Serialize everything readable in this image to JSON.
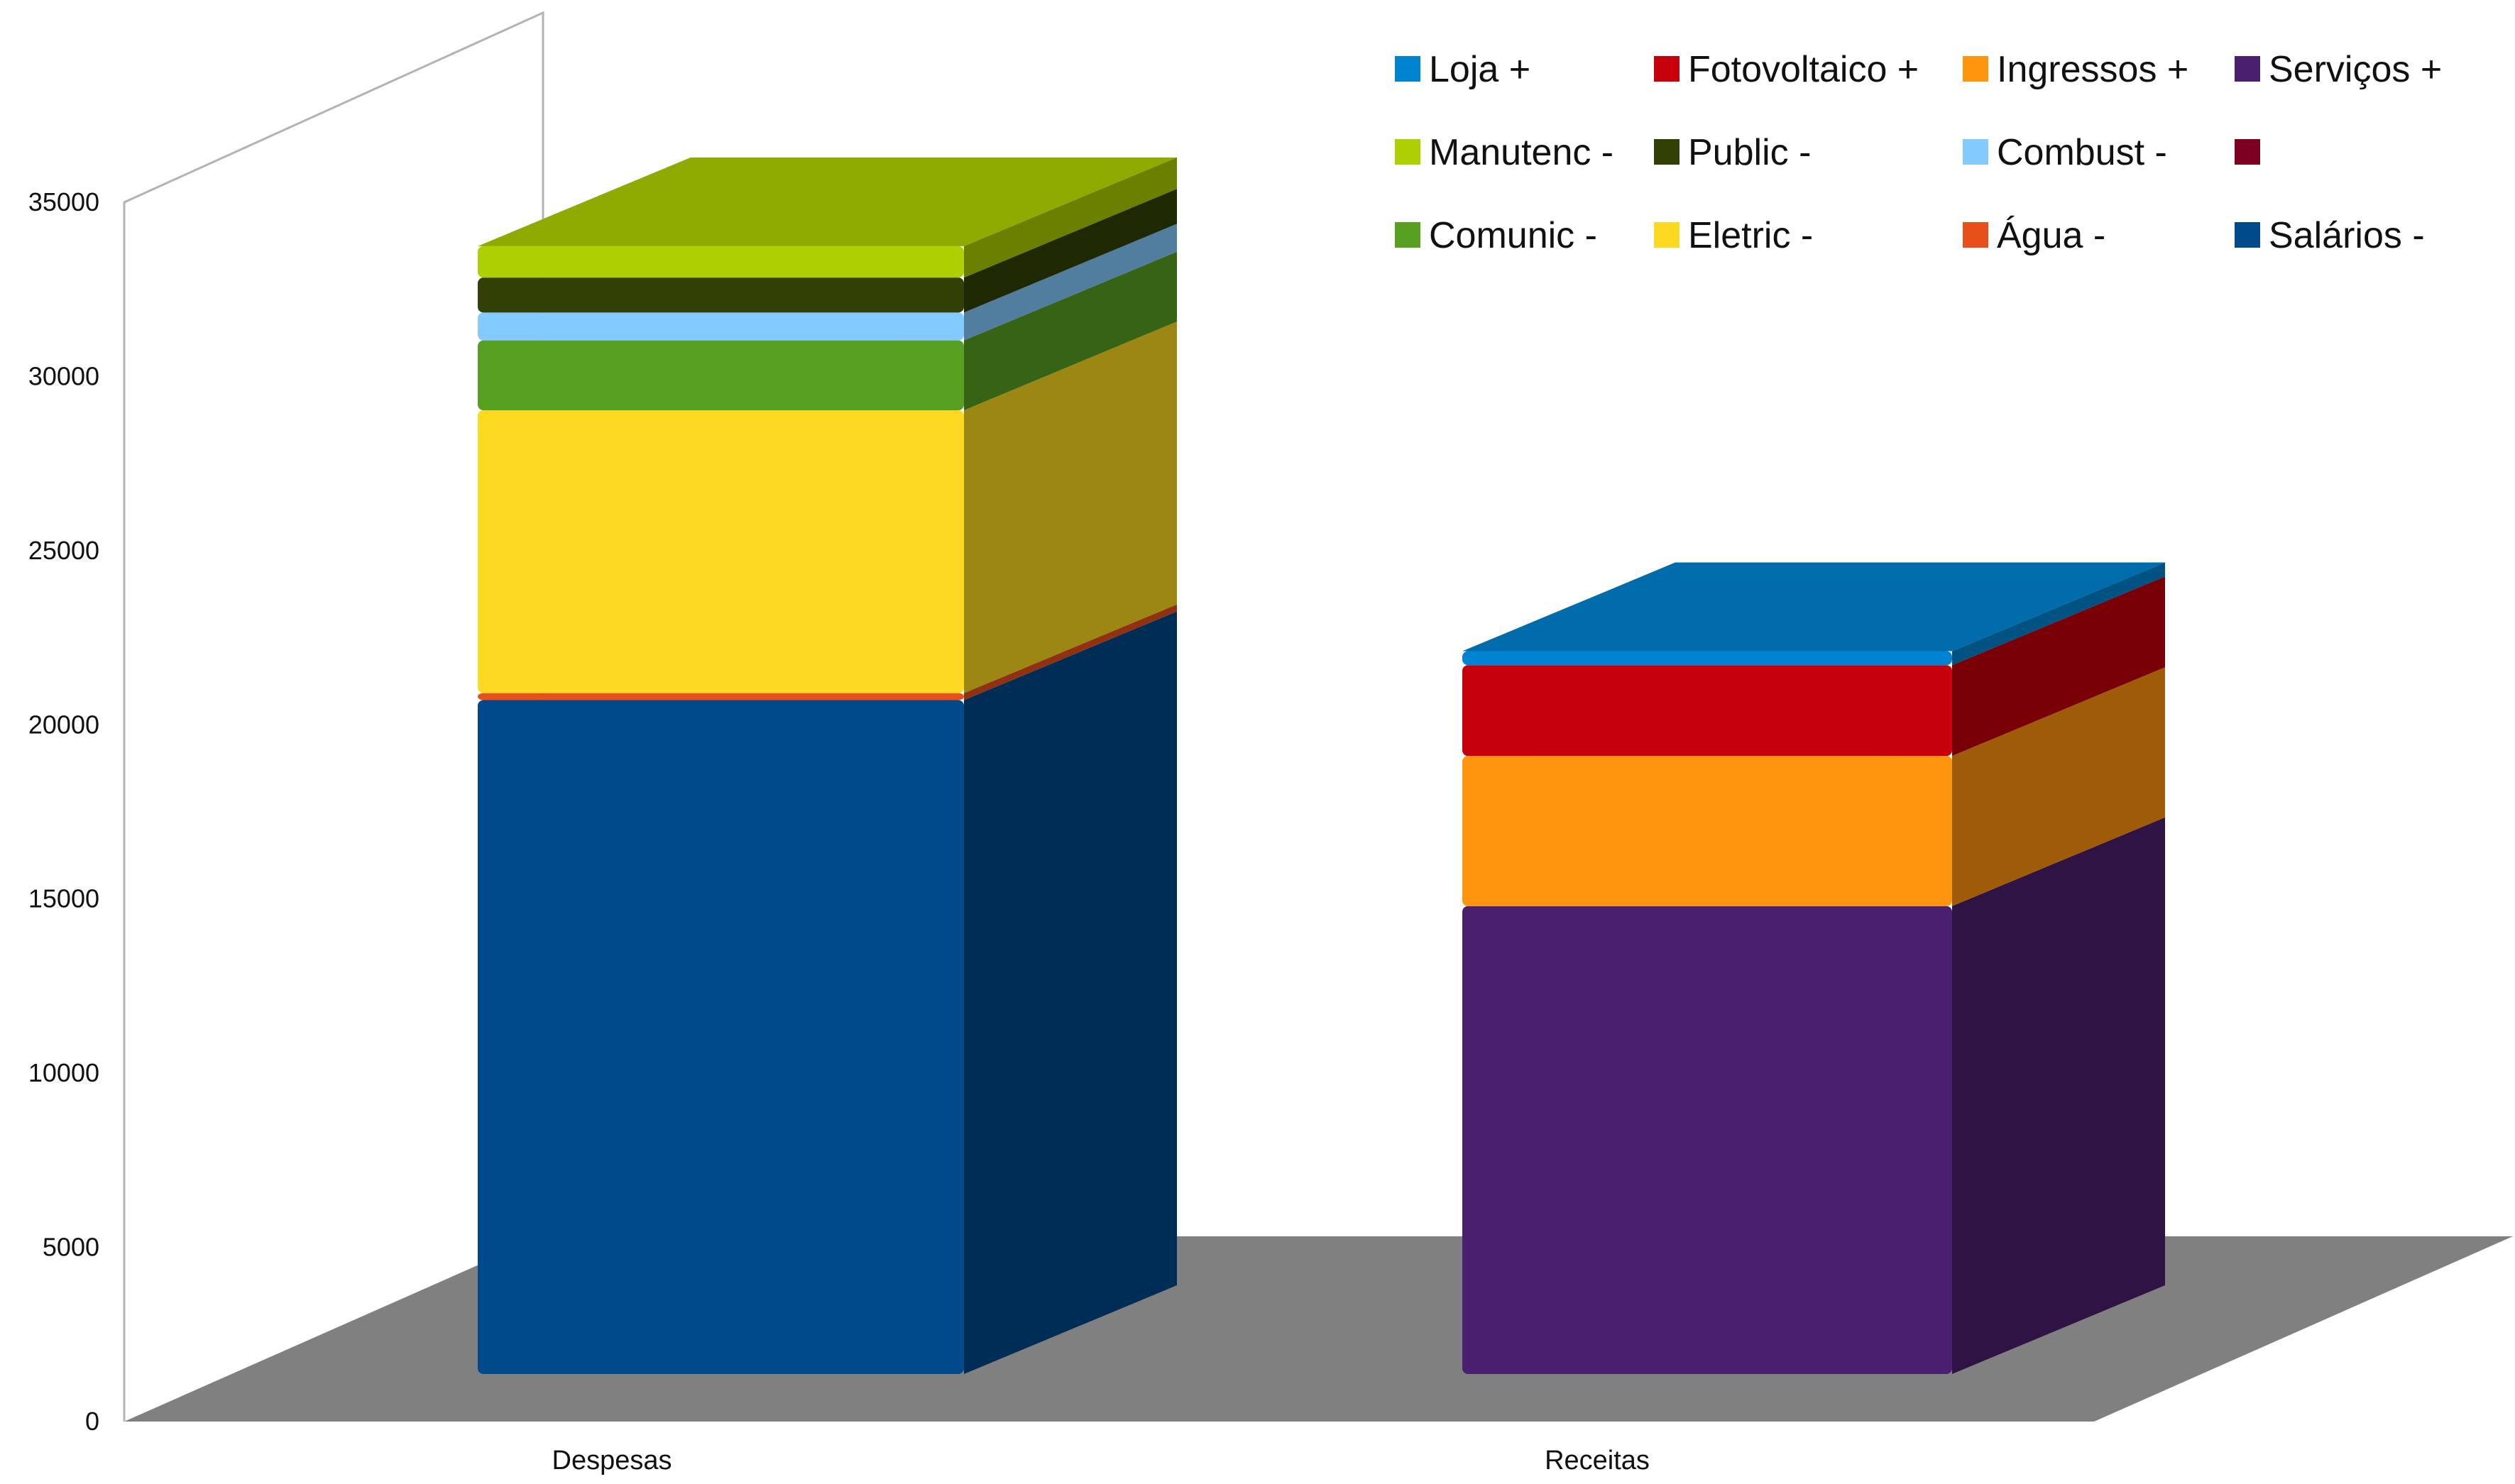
{
  "chart_data": {
    "type": "bar",
    "stacked": true,
    "three_d": true,
    "categories": [
      "Despesas",
      "Receitas"
    ],
    "ylim": [
      0,
      35000
    ],
    "yticks": [
      0,
      5000,
      10000,
      15000,
      20000,
      25000,
      30000,
      35000
    ],
    "grid": false,
    "legend_position": "top-right",
    "legend_columns": 4,
    "series": [
      {
        "name": "Salários -",
        "color": "#00498b",
        "values": [
          19300,
          0
        ]
      },
      {
        "name": "Água -",
        "color": "#e8501b",
        "values": [
          200,
          0
        ]
      },
      {
        "name": "Eletric -",
        "color": "#fdd921",
        "values": [
          8100,
          0
        ]
      },
      {
        "name": "Comunic -",
        "color": "#57a021",
        "values": [
          2000,
          0
        ]
      },
      {
        "name": "",
        "color": "#7e0021",
        "values": [
          0,
          0
        ]
      },
      {
        "name": "Combust -",
        "color": "#83caff",
        "values": [
          800,
          0
        ]
      },
      {
        "name": "Public -",
        "color": "#314004",
        "values": [
          1000,
          0
        ]
      },
      {
        "name": "Manutenc -",
        "color": "#aecf00",
        "values": [
          900,
          0
        ]
      },
      {
        "name": "Serviços +",
        "color": "#4b1f6f",
        "values": [
          0,
          13400
        ]
      },
      {
        "name": "Ingressos +",
        "color": "#ff950e",
        "values": [
          0,
          4300
        ]
      },
      {
        "name": "Fotovoltaico +",
        "color": "#c5000b",
        "values": [
          0,
          2600
        ]
      },
      {
        "name": "Loja +",
        "color": "#0084d1",
        "values": [
          0,
          400
        ]
      }
    ],
    "legend_order": [
      "Loja +",
      "Fotovoltaico +",
      "Ingressos +",
      "Serviços +",
      "Manutenc -",
      "Public -",
      "Combust -",
      "",
      "Comunic -",
      "Eletric -",
      "Água -",
      "Salários -"
    ],
    "colors": {
      "floor": "#808080",
      "wall": "#b3b3b3"
    }
  }
}
